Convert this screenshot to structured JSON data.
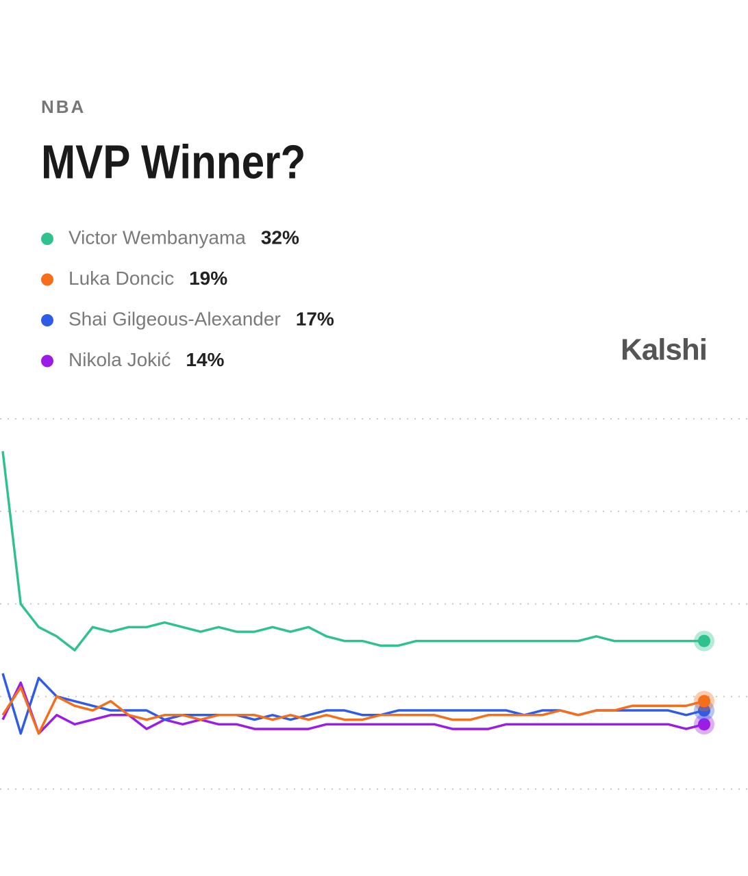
{
  "chart_data": {
    "type": "line",
    "subtitle": "NBA",
    "title": "MVP Winner?",
    "brand": "Kalshi",
    "ylim": [
      0,
      80
    ],
    "yticks": [
      0,
      20,
      40,
      60,
      80
    ],
    "grid": true,
    "series": [
      {
        "name": "Victor Wembanyama",
        "color": "#2fc28f",
        "values": [
          73,
          40,
          35,
          33,
          30,
          35,
          34,
          35,
          35,
          36,
          35,
          34,
          35,
          34,
          34,
          35,
          34,
          35,
          33,
          32,
          32,
          31,
          31,
          32,
          32,
          32,
          32,
          32,
          32,
          32,
          32,
          32,
          32,
          33,
          32,
          32,
          32,
          32,
          32,
          32
        ],
        "value_labels": [
          null,
          null,
          null,
          null,
          null,
          null,
          null,
          null,
          null,
          null,
          null,
          null,
          null,
          null,
          null,
          null,
          null,
          null,
          null,
          null,
          null,
          null,
          null,
          null,
          null,
          null,
          null,
          null,
          null,
          null,
          null,
          null,
          null,
          null,
          null,
          null,
          null,
          null,
          null,
          "32%"
        ]
      },
      {
        "name": "Luka Doncic",
        "color": "#f56e1a",
        "values": [
          16,
          22,
          12,
          20,
          18,
          17,
          19,
          16,
          15,
          16,
          16,
          15,
          16,
          16,
          16,
          15,
          16,
          15,
          16,
          15,
          15,
          16,
          16,
          16,
          16,
          15,
          15,
          16,
          16,
          16,
          16,
          17,
          16,
          17,
          17,
          18,
          18,
          18,
          18,
          19
        ],
        "value_labels": [
          null,
          null,
          null,
          null,
          null,
          null,
          null,
          null,
          null,
          null,
          null,
          null,
          null,
          null,
          null,
          null,
          null,
          null,
          null,
          null,
          null,
          null,
          null,
          null,
          null,
          null,
          null,
          null,
          null,
          null,
          null,
          null,
          null,
          null,
          null,
          null,
          null,
          null,
          null,
          "19%"
        ]
      },
      {
        "name": "Shai Gilgeous-Alexander",
        "color": "#2f5ce6",
        "values": [
          25,
          12,
          24,
          20,
          19,
          18,
          17,
          17,
          17,
          15,
          16,
          16,
          16,
          16,
          15,
          16,
          15,
          16,
          17,
          17,
          16,
          16,
          17,
          17,
          17,
          17,
          17,
          17,
          17,
          16,
          17,
          17,
          16,
          17,
          17,
          17,
          17,
          17,
          16,
          17
        ],
        "value_labels": [
          null,
          null,
          null,
          null,
          null,
          null,
          null,
          null,
          null,
          null,
          null,
          null,
          null,
          null,
          null,
          null,
          null,
          null,
          null,
          null,
          null,
          null,
          null,
          null,
          null,
          null,
          null,
          null,
          null,
          null,
          null,
          null,
          null,
          null,
          null,
          null,
          null,
          null,
          null,
          "17%"
        ]
      },
      {
        "name": "Nikola Jokić",
        "color": "#9b1ce6",
        "values": [
          15,
          23,
          12,
          16,
          14,
          15,
          16,
          16,
          13,
          15,
          14,
          15,
          14,
          14,
          13,
          13,
          13,
          13,
          14,
          14,
          14,
          14,
          14,
          14,
          14,
          13,
          13,
          13,
          14,
          14,
          14,
          14,
          14,
          14,
          14,
          14,
          14,
          14,
          13,
          14
        ],
        "value_labels": [
          null,
          null,
          null,
          null,
          null,
          null,
          null,
          null,
          null,
          null,
          null,
          null,
          null,
          null,
          null,
          null,
          null,
          null,
          null,
          null,
          null,
          null,
          null,
          null,
          null,
          null,
          null,
          null,
          null,
          null,
          null,
          null,
          null,
          null,
          null,
          null,
          null,
          null,
          null,
          "14%"
        ]
      }
    ]
  }
}
